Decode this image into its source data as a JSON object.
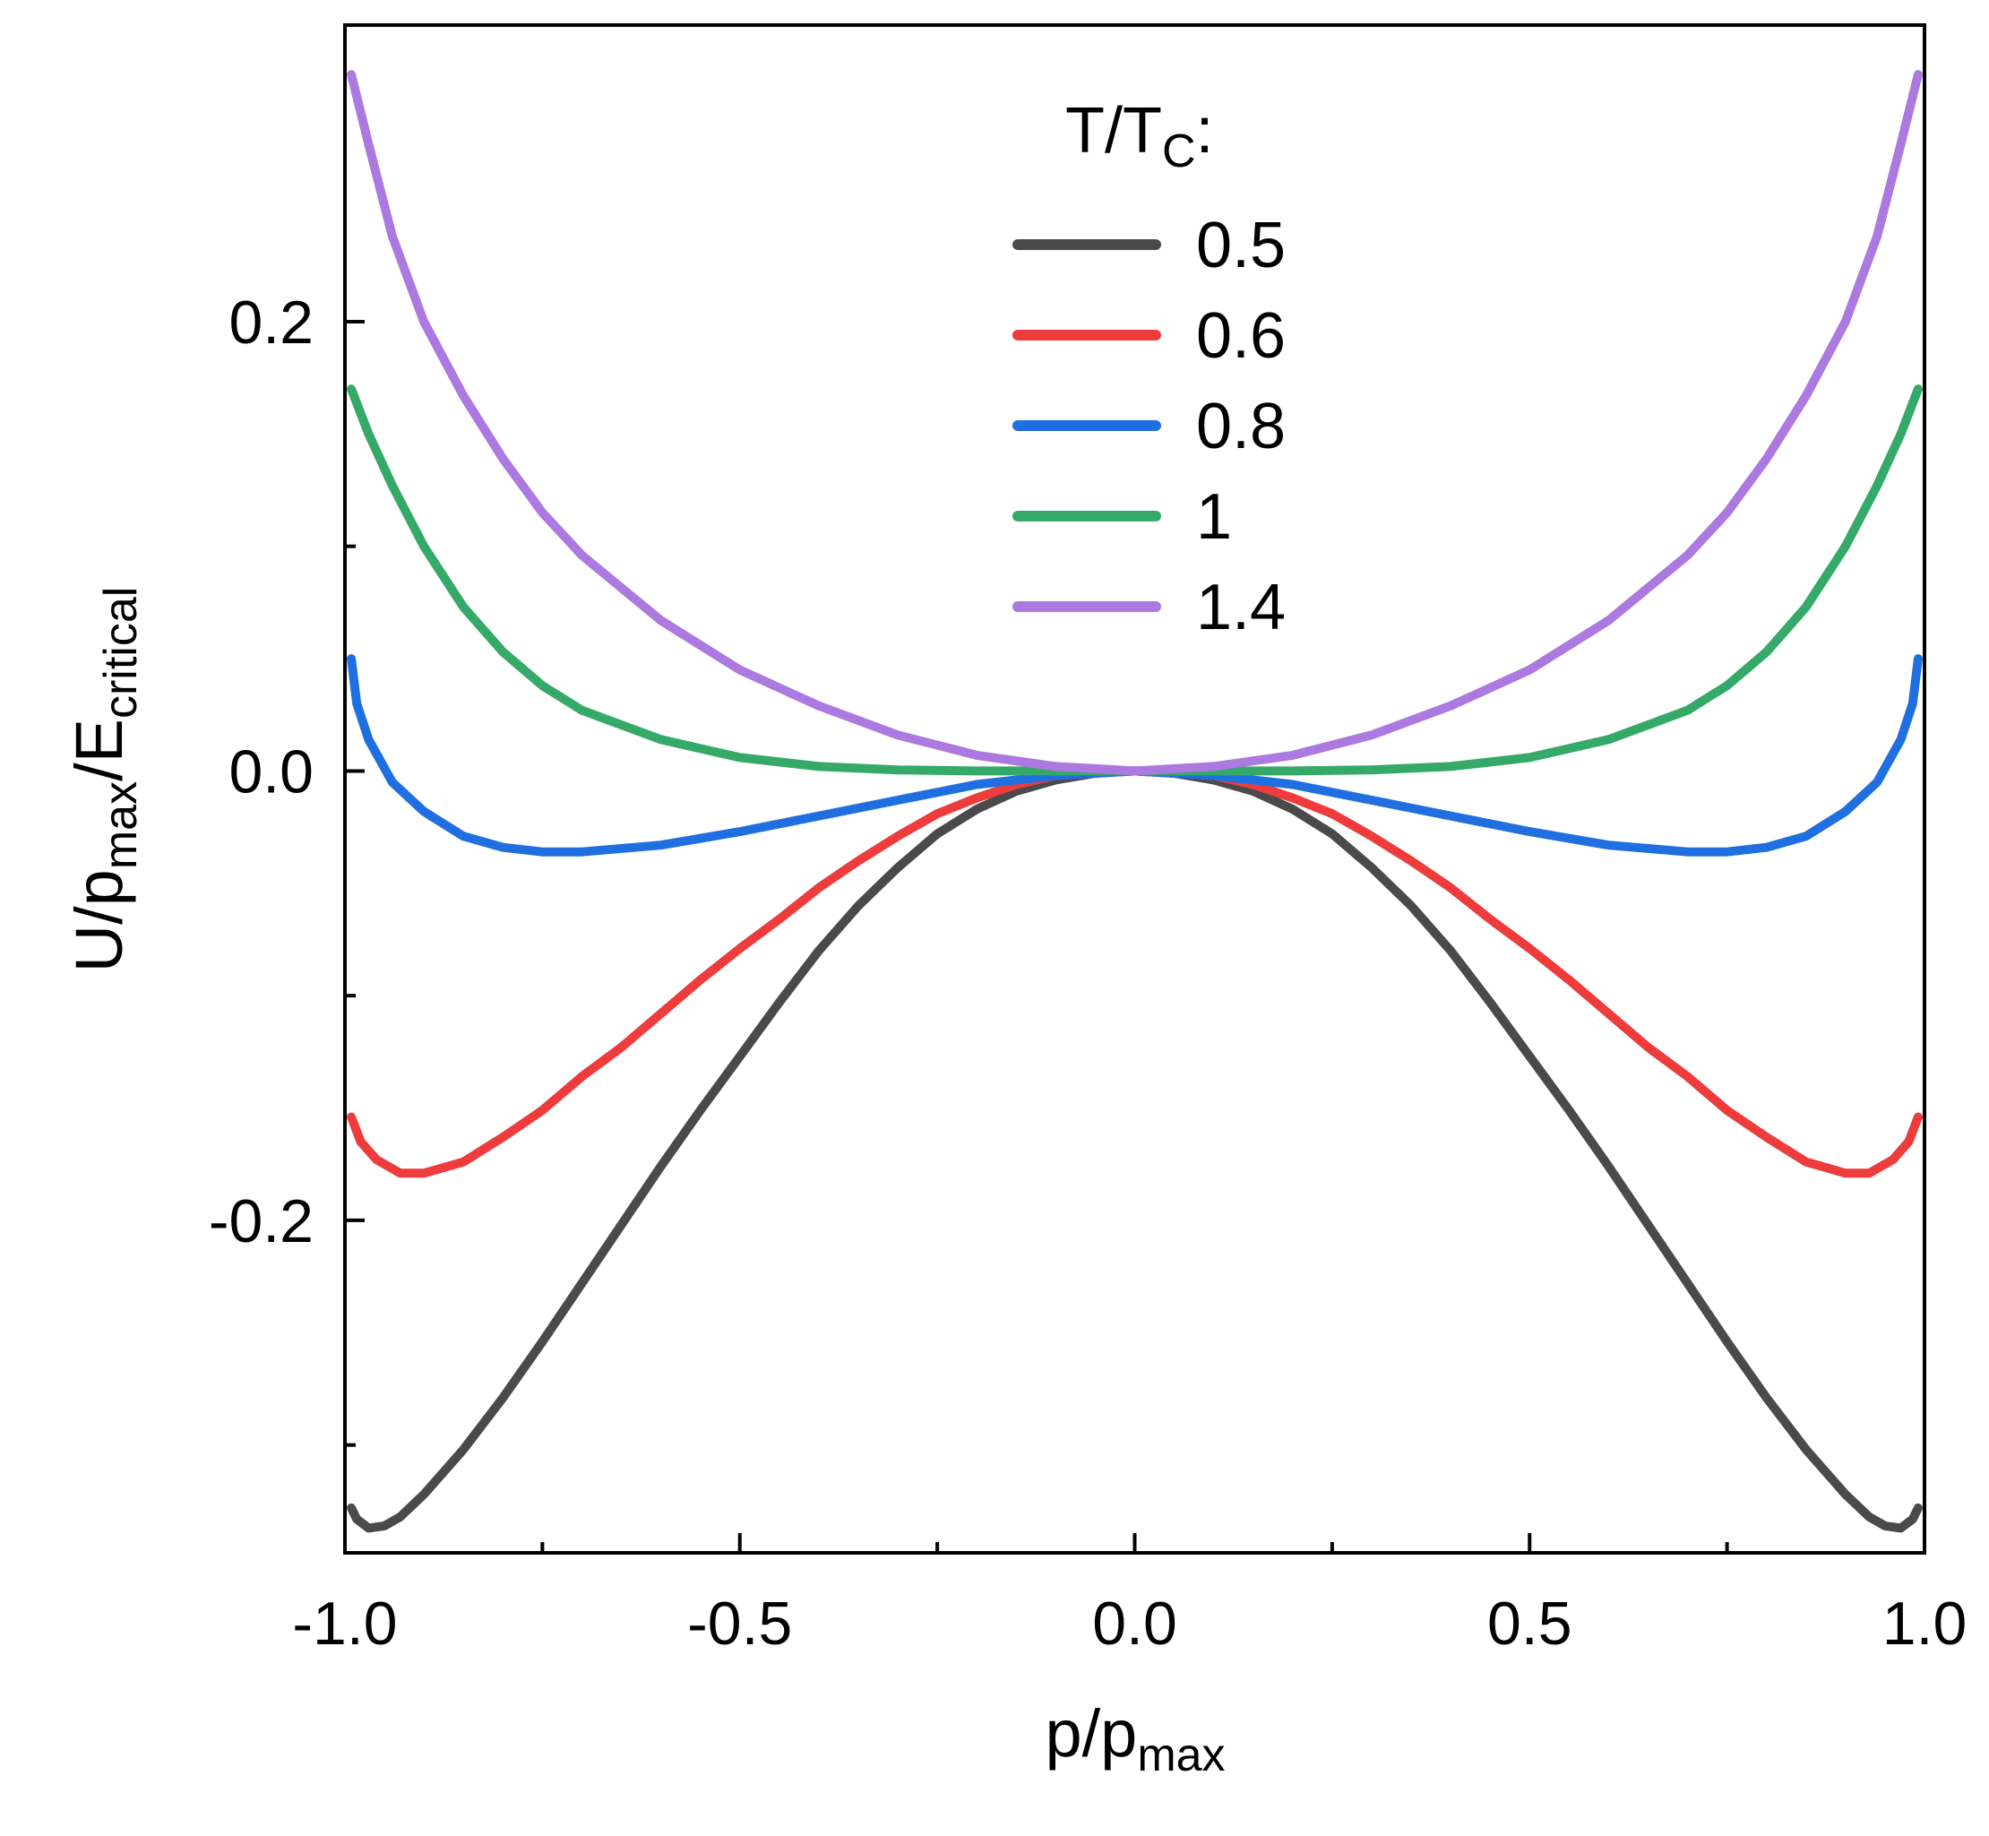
{
  "chart_data": {
    "type": "line",
    "title": "",
    "xlabel": {
      "base": "p/p",
      "sub": "max"
    },
    "ylabel": {
      "base1": "U/p",
      "sub1": "max",
      "base2": "/E",
      "sub2": "critical"
    },
    "xlim": [
      -1.0,
      1.0
    ],
    "ylim": [
      -0.348,
      0.332
    ],
    "x_major_ticks": [
      -1.0,
      -0.5,
      0.0,
      0.5,
      1.0
    ],
    "x_tick_labels": [
      "-1.0",
      "-0.5",
      "0.0",
      "0.5",
      "1.0"
    ],
    "x_minor_ticks": [
      -0.75,
      -0.25,
      0.25,
      0.75
    ],
    "y_major_ticks": [
      -0.2,
      0.0,
      0.2
    ],
    "y_tick_labels": [
      "-0.2",
      "0.0",
      "0.2"
    ],
    "y_minor_ticks": [
      -0.3,
      -0.1,
      0.1
    ],
    "grid": false,
    "legend": {
      "placement": "top-center",
      "title": {
        "base": "T/T",
        "sub": "C",
        "suffix": ":"
      }
    },
    "series": [
      {
        "name": "0.5",
        "color": "#4a4a4a",
        "points": [
          [
            0,
            0
          ],
          [
            0.05,
            -0.001
          ],
          [
            0.1,
            -0.004
          ],
          [
            0.15,
            -0.009
          ],
          [
            0.2,
            -0.017
          ],
          [
            0.25,
            -0.028
          ],
          [
            0.3,
            -0.043
          ],
          [
            0.35,
            -0.06
          ],
          [
            0.4,
            -0.08
          ],
          [
            0.45,
            -0.103
          ],
          [
            0.5,
            -0.127
          ],
          [
            0.55,
            -0.151
          ],
          [
            0.6,
            -0.176
          ],
          [
            0.65,
            -0.202
          ],
          [
            0.7,
            -0.228
          ],
          [
            0.75,
            -0.254
          ],
          [
            0.8,
            -0.279
          ],
          [
            0.85,
            -0.302
          ],
          [
            0.9,
            -0.322
          ],
          [
            0.93,
            -0.332
          ],
          [
            0.95,
            -0.336
          ],
          [
            0.97,
            -0.337
          ],
          [
            0.985,
            -0.333
          ],
          [
            0.992,
            -0.328
          ]
        ]
      },
      {
        "name": "0.6",
        "color": "#ee3b3b",
        "points": [
          [
            0,
            0
          ],
          [
            0.05,
            -0.001
          ],
          [
            0.1,
            -0.002
          ],
          [
            0.15,
            -0.006
          ],
          [
            0.2,
            -0.012
          ],
          [
            0.25,
            -0.019
          ],
          [
            0.3,
            -0.029
          ],
          [
            0.35,
            -0.04
          ],
          [
            0.4,
            -0.052
          ],
          [
            0.45,
            -0.066
          ],
          [
            0.5,
            -0.079
          ],
          [
            0.55,
            -0.093
          ],
          [
            0.6,
            -0.108
          ],
          [
            0.65,
            -0.123
          ],
          [
            0.7,
            -0.136
          ],
          [
            0.75,
            -0.151
          ],
          [
            0.8,
            -0.163
          ],
          [
            0.85,
            -0.174
          ],
          [
            0.9,
            -0.179
          ],
          [
            0.93,
            -0.179
          ],
          [
            0.96,
            -0.173
          ],
          [
            0.98,
            -0.165
          ],
          [
            0.992,
            -0.154
          ]
        ]
      },
      {
        "name": "0.8",
        "color": "#1f6fe0",
        "points": [
          [
            0,
            0
          ],
          [
            0.1,
            -0.002
          ],
          [
            0.2,
            -0.006
          ],
          [
            0.3,
            -0.013
          ],
          [
            0.4,
            -0.02
          ],
          [
            0.5,
            -0.027
          ],
          [
            0.6,
            -0.033
          ],
          [
            0.7,
            -0.036
          ],
          [
            0.75,
            -0.036
          ],
          [
            0.8,
            -0.034
          ],
          [
            0.85,
            -0.029
          ],
          [
            0.9,
            -0.018
          ],
          [
            0.94,
            -0.005
          ],
          [
            0.97,
            0.014
          ],
          [
            0.985,
            0.03
          ],
          [
            0.992,
            0.05
          ]
        ]
      },
      {
        "name": "1",
        "color": "#35aa68",
        "points": [
          [
            0,
            0
          ],
          [
            0.1,
            0
          ],
          [
            0.2,
            0
          ],
          [
            0.3,
            0.0005
          ],
          [
            0.4,
            0.002
          ],
          [
            0.5,
            0.006
          ],
          [
            0.6,
            0.014
          ],
          [
            0.7,
            0.027
          ],
          [
            0.75,
            0.038
          ],
          [
            0.8,
            0.053
          ],
          [
            0.85,
            0.073
          ],
          [
            0.9,
            0.1
          ],
          [
            0.94,
            0.127
          ],
          [
            0.97,
            0.15
          ],
          [
            0.992,
            0.17
          ]
        ]
      },
      {
        "name": "1.4",
        "color": "#ab79e0",
        "points": [
          [
            0,
            0
          ],
          [
            0.1,
            0.002
          ],
          [
            0.2,
            0.007
          ],
          [
            0.3,
            0.016
          ],
          [
            0.4,
            0.029
          ],
          [
            0.5,
            0.045
          ],
          [
            0.6,
            0.067
          ],
          [
            0.7,
            0.096
          ],
          [
            0.75,
            0.115
          ],
          [
            0.8,
            0.139
          ],
          [
            0.85,
            0.167
          ],
          [
            0.9,
            0.2
          ],
          [
            0.94,
            0.238
          ],
          [
            0.97,
            0.279
          ],
          [
            0.992,
            0.31
          ]
        ]
      }
    ]
  }
}
